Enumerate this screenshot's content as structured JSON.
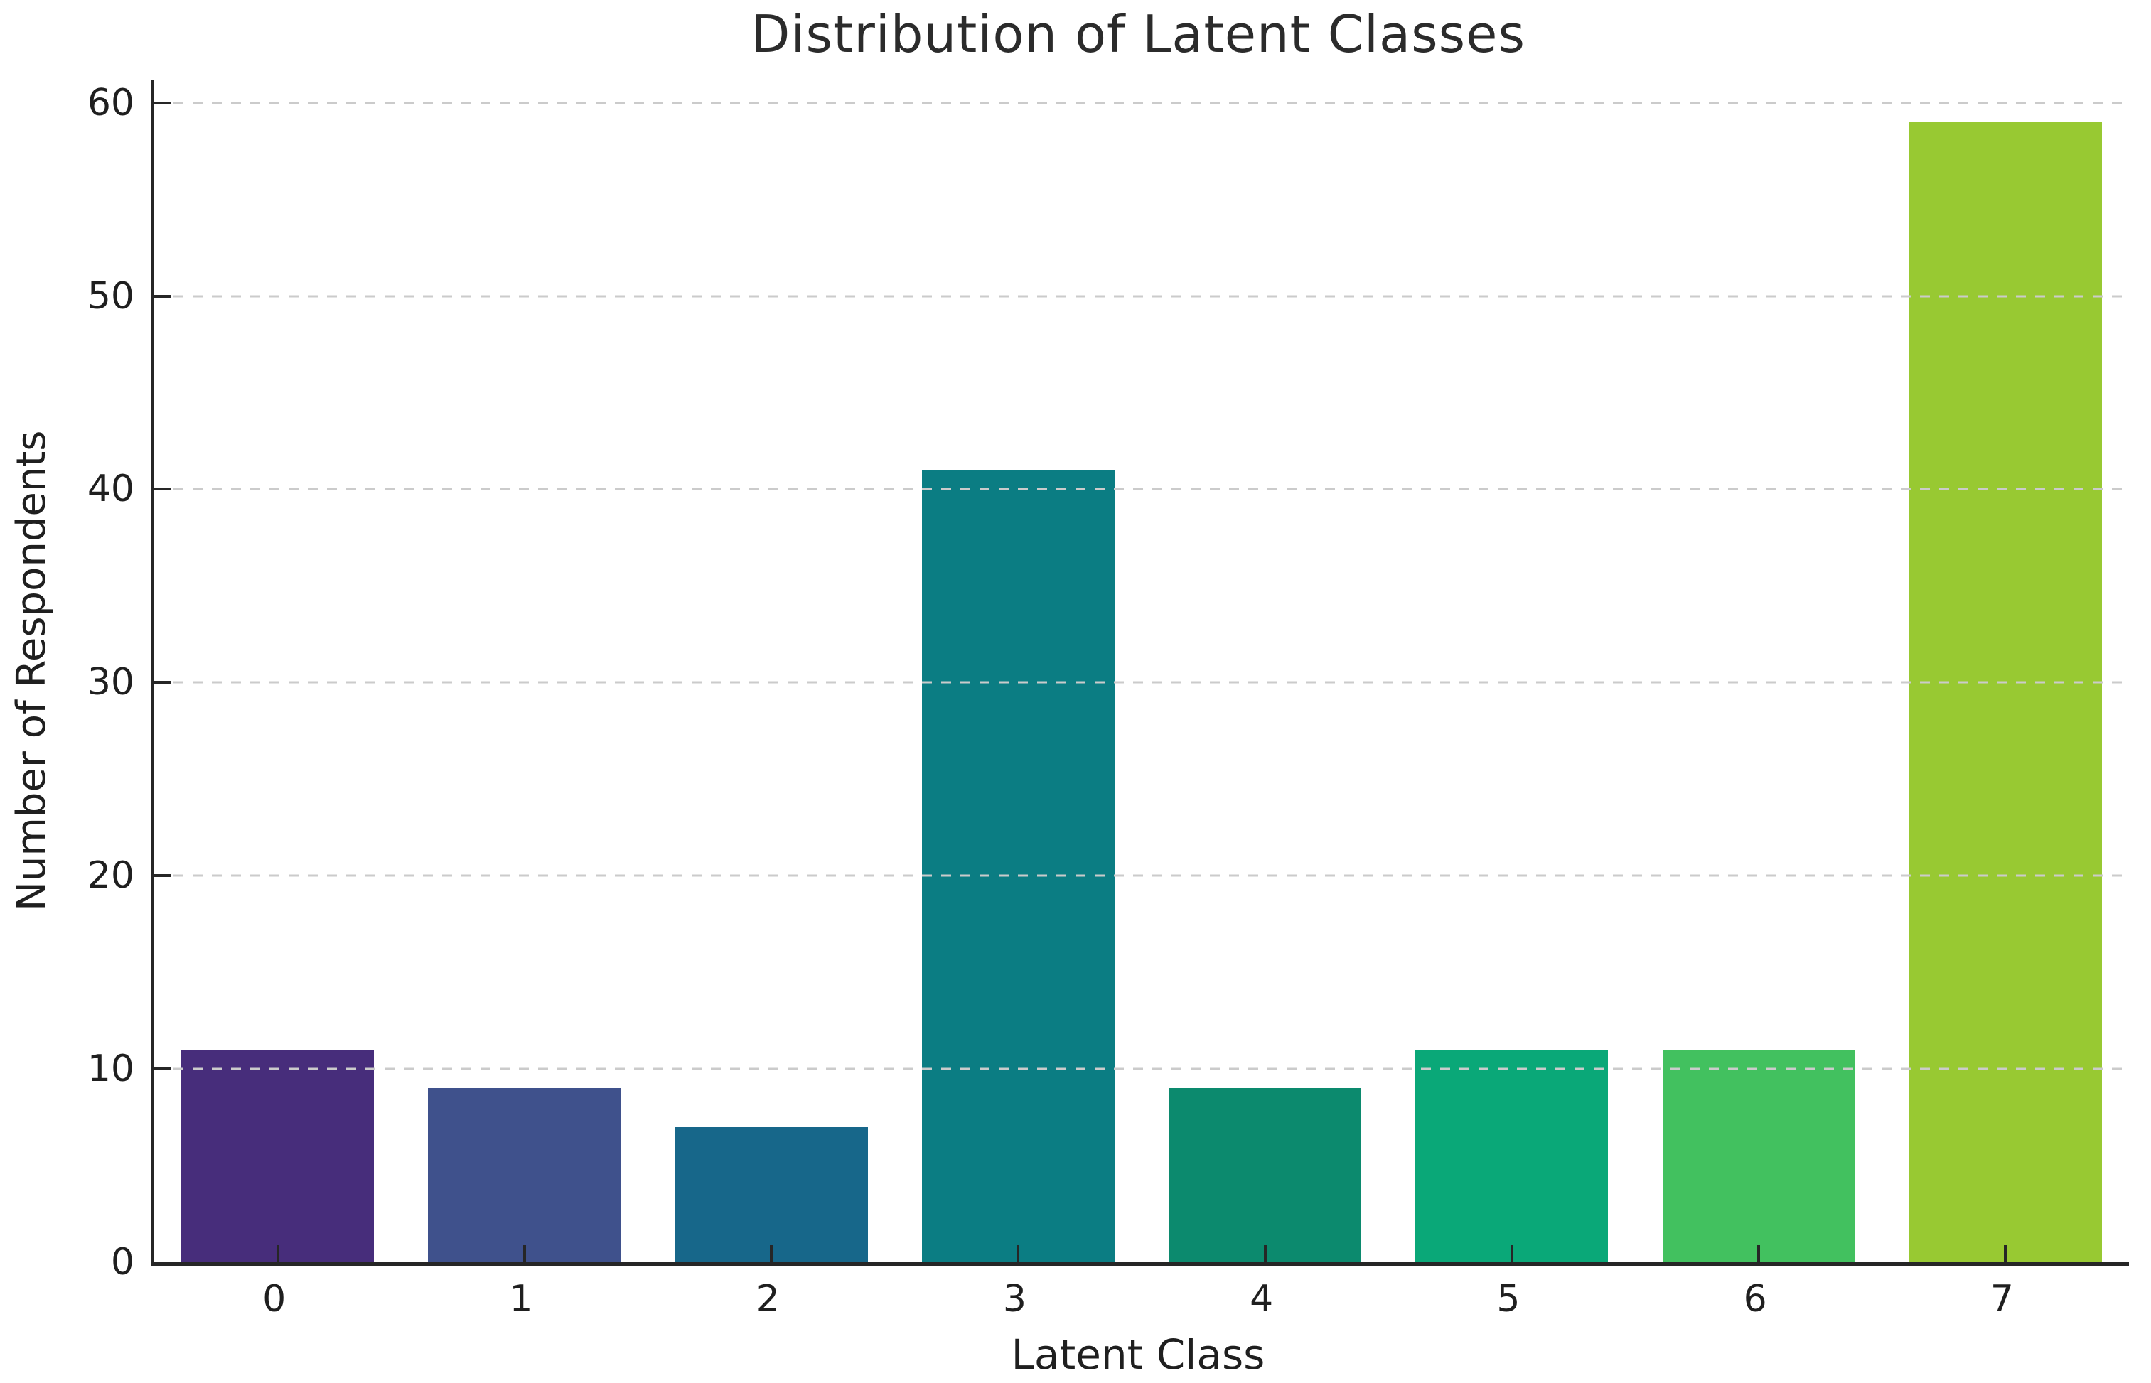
{
  "title": "Distribution of Latent Classes",
  "chart_data": {
    "type": "bar",
    "title": "Distribution of Latent Classes",
    "xlabel": "Latent Class",
    "ylabel": "Number of Respondents",
    "categories": [
      "0",
      "1",
      "2",
      "3",
      "4",
      "5",
      "6",
      "7"
    ],
    "values": [
      11,
      9,
      7,
      41,
      9,
      11,
      11,
      59
    ],
    "bar_colors": [
      "#472d7b",
      "#3f518c",
      "#17678a",
      "#0b7d83",
      "#0c8a6e",
      "#0aa878",
      "#42c15f",
      "#98c932"
    ],
    "yticks": [
      0,
      10,
      20,
      30,
      40,
      50,
      60
    ],
    "ylim": [
      0,
      61.2
    ],
    "grid": "horizontal-dashed",
    "legend": "none",
    "colors": {
      "axis": "#262626",
      "grid": "#cbcbcb",
      "title_text": "#2b2b2b",
      "label_text": "#1f1f1f",
      "background": "#ffffff"
    }
  }
}
